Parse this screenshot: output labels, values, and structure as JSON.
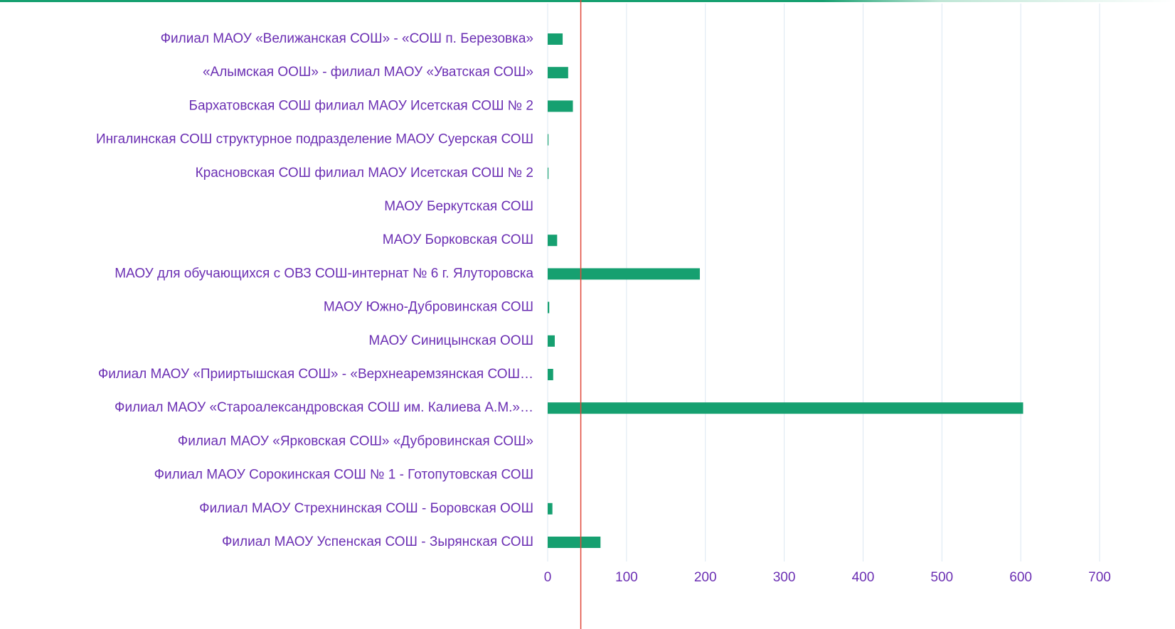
{
  "chart_data": {
    "type": "hbar",
    "categories": [
      "Филиал МАОУ «Велижанская СОШ» - «СОШ п. Березовка»",
      "«Алымская ООШ» - филиал МАОУ «Уватская СОШ»",
      "Бархатовская СОШ филиал МАОУ Исетская СОШ № 2",
      "Ингалинская СОШ структурное подразделение МАОУ Суерская СОШ",
      "Красновская СОШ филиал МАОУ Исетская СОШ № 2",
      "МАОУ Беркутская СОШ",
      "МАОУ Борковская СОШ",
      "МАОУ для обучающихся с ОВЗ СОШ-интернат № 6 г. Ялуторовска",
      "МАОУ Южно-Дубровинская СОШ",
      "МАОУ Синицынская ООШ",
      "Филиал МАОУ «Прииртышская СОШ» - «Верхнеаремзянская СОШ…",
      "Филиал МАОУ «Староалександровская СОШ им. Калиева А.М.»…",
      "Филиал МАОУ «Ярковская СОШ» «Дубровинская СОШ»",
      "Филиал МАОУ Сорокинская СОШ № 1 - Готопутовская СОШ",
      "Филиал МАОУ Стрехнинская СОШ - Боровская ООШ",
      "Филиал МАОУ Успенская СОШ - Зырянская СОШ"
    ],
    "values": [
      19,
      26,
      32,
      1,
      1,
      0,
      12,
      193,
      2,
      9,
      7,
      603,
      0,
      0,
      6,
      67
    ],
    "color": "#16a070",
    "xlim": [
      0,
      700
    ],
    "xticks": [
      0,
      100,
      200,
      300,
      400,
      500,
      600,
      700
    ],
    "grid": true,
    "reference_line": {
      "value": 42,
      "color": "#e0483a"
    }
  }
}
